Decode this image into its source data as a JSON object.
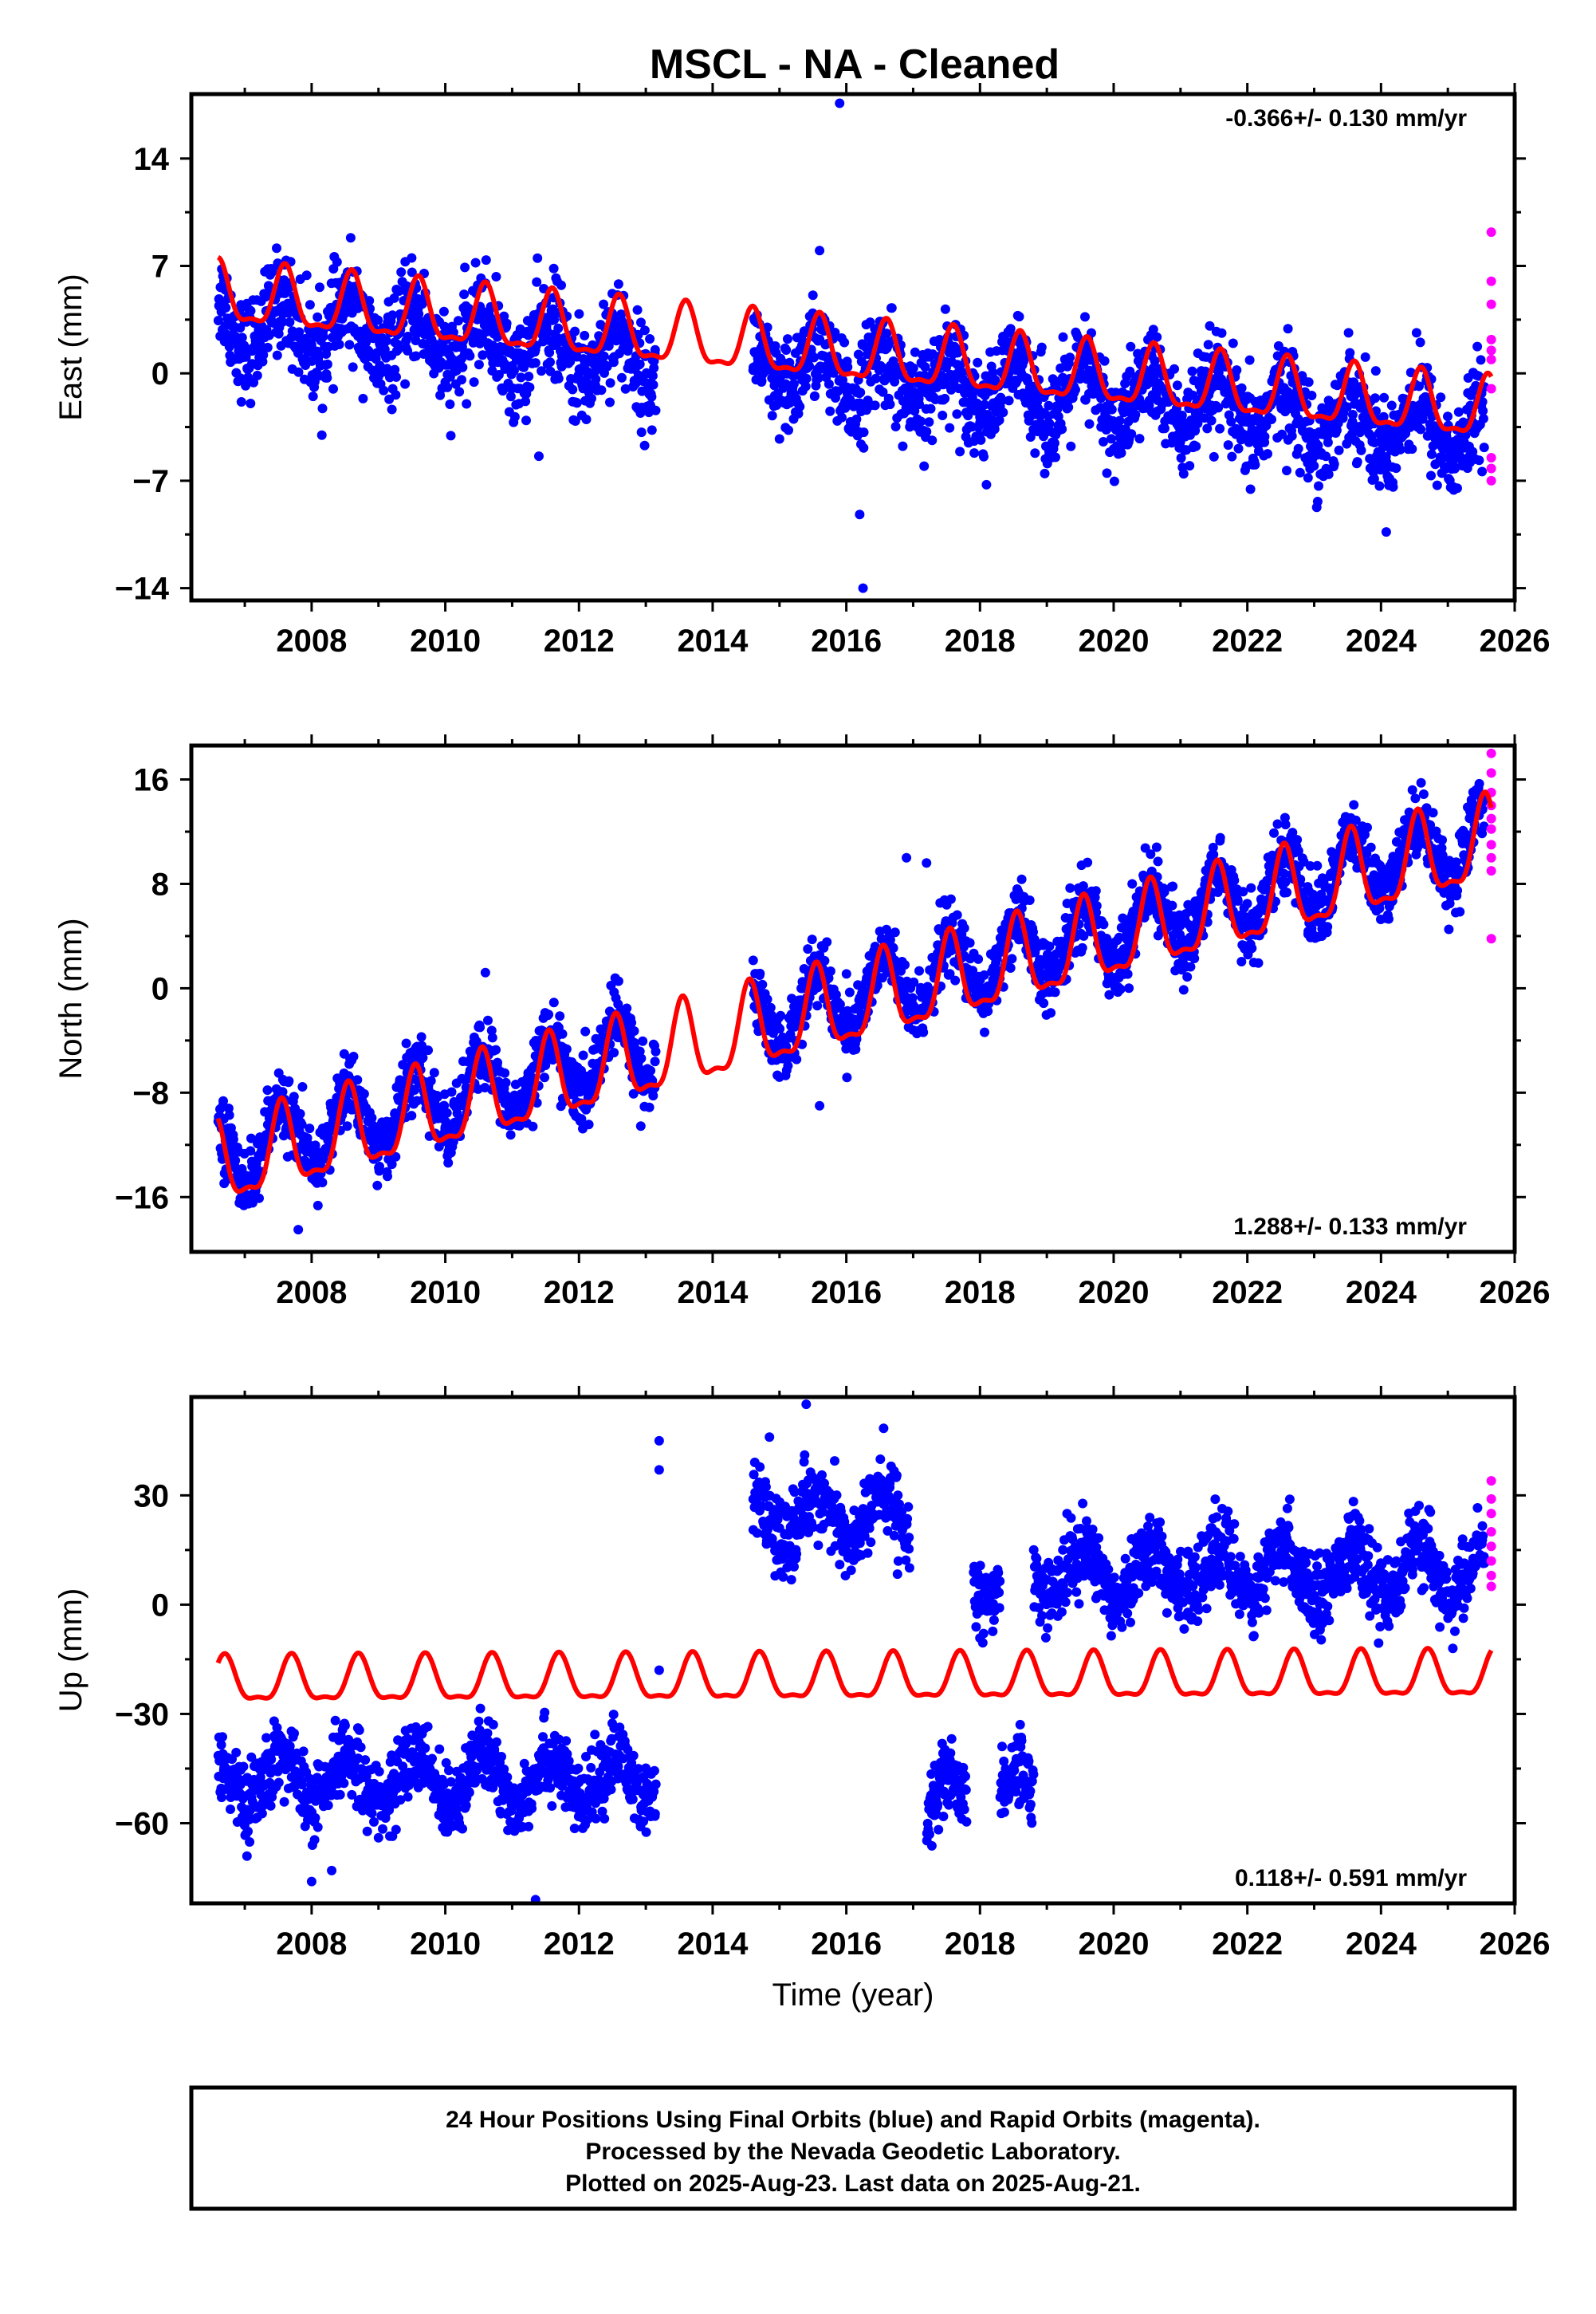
{
  "title": "MSCL  - NA - Cleaned",
  "footer": {
    "lines": [
      "24 Hour Positions Using Final Orbits (blue) and Rapid Orbits (magenta).",
      "Processed by the Nevada Geodetic Laboratory.",
      "Plotted on 2025-Aug-23. Last data on 2025-Aug-21."
    ]
  },
  "colors": {
    "final": "#0000ff",
    "rapid": "#ff00ff",
    "model": "#ff0000"
  },
  "chart_data": [
    {
      "type": "scatter",
      "ylabel": "East (mm)",
      "xlabel": "",
      "xlim": [
        2006.2,
        2026.0
      ],
      "ylim": [
        -14.8,
        18.2
      ],
      "yticks": [
        14,
        7,
        0,
        -7,
        -14
      ],
      "xticks": [
        2008,
        2010,
        2012,
        2014,
        2016,
        2018,
        2020,
        2022,
        2024,
        2026
      ],
      "rate_text": "-0.366+/- 0.130 mm/yr",
      "rate_position": "top-right",
      "series": [
        {
          "name": "Final Orbits",
          "color": "#0000ff",
          "segments": [
            [
              2006.6,
              2013.15
            ],
            [
              2014.6,
              2025.55
            ]
          ],
          "trend": [
            3.5,
            2025.5,
            -3.8
          ],
          "annual_amplitude": 1.7,
          "noise": 1.6,
          "outliers": [
            [
              2015.9,
              17.6
            ],
            [
              2016.25,
              -14.0
            ],
            [
              2016.2,
              -9.2
            ],
            [
              2015.6,
              8.0
            ],
            [
              2011.4,
              -5.4
            ]
          ]
        },
        {
          "name": "Rapid Orbits",
          "color": "#ff00ff",
          "points": [
            [
              2025.65,
              9.2
            ],
            [
              2025.65,
              6.0
            ],
            [
              2025.65,
              4.5
            ],
            [
              2025.65,
              2.2
            ],
            [
              2025.65,
              1.5
            ],
            [
              2025.65,
              0.9
            ],
            [
              2025.65,
              -1.0
            ],
            [
              2025.65,
              -5.5
            ],
            [
              2025.65,
              -6.2
            ],
            [
              2025.65,
              -7.0
            ]
          ]
        },
        {
          "name": "Model",
          "color": "#ff0000",
          "range": [
            2006.6,
            2025.65
          ],
          "trend": [
            5.0,
            2025.5,
            -2.5
          ],
          "annual_amplitude": 1.9,
          "phase": 0.6
        }
      ]
    },
    {
      "type": "scatter",
      "ylabel": "North (mm)",
      "xlabel": "",
      "xlim": [
        2006.2,
        2026.0
      ],
      "ylim": [
        -20.2,
        18.6
      ],
      "yticks": [
        16,
        8,
        0,
        -8,
        -16
      ],
      "xticks": [
        2008,
        2010,
        2012,
        2014,
        2016,
        2018,
        2020,
        2022,
        2024,
        2026
      ],
      "rate_text": "1.288+/- 0.133 mm/yr",
      "rate_position": "bottom-right",
      "series": [
        {
          "name": "Final Orbits",
          "color": "#0000ff",
          "segments": [
            [
              2006.6,
              2013.15
            ],
            [
              2014.6,
              2025.55
            ]
          ],
          "trend": [
            -12.8,
            2025.5,
            11.5
          ],
          "annual_amplitude": 2.6,
          "noise": 1.3,
          "outliers": [
            [
              2015.6,
              -9.0
            ],
            [
              2016.9,
              10.0
            ],
            [
              2017.2,
              9.6
            ],
            [
              2007.8,
              -18.5
            ],
            [
              2010.6,
              1.2
            ]
          ]
        },
        {
          "name": "Rapid Orbits",
          "color": "#ff00ff",
          "points": [
            [
              2025.65,
              18.0
            ],
            [
              2025.65,
              16.5
            ],
            [
              2025.65,
              15.0
            ],
            [
              2025.65,
              14.0
            ],
            [
              2025.65,
              13.0
            ],
            [
              2025.65,
              12.2
            ],
            [
              2025.65,
              11.0
            ],
            [
              2025.65,
              10.0
            ],
            [
              2025.65,
              9.0
            ],
            [
              2025.65,
              3.8
            ]
          ]
        },
        {
          "name": "Model",
          "color": "#ff0000",
          "range": [
            2006.6,
            2025.65
          ],
          "trend": [
            -13.8,
            2025.5,
            10.8
          ],
          "annual_amplitude": 3.1,
          "phase": 0.55
        }
      ]
    },
    {
      "type": "scatter",
      "ylabel": "Up (mm)",
      "xlabel": "Time (year)",
      "xlim": [
        2006.2,
        2026.0
      ],
      "ylim": [
        -82,
        57
      ],
      "yticks": [
        30,
        0,
        -30,
        -60
      ],
      "xticks": [
        2008,
        2010,
        2012,
        2014,
        2016,
        2018,
        2020,
        2022,
        2024,
        2026
      ],
      "rate_text": "0.118+/- 0.591 mm/yr",
      "rate_position": "bottom-right",
      "series": [
        {
          "name": "Final Orbits",
          "color": "#0000ff",
          "segments": [
            [
              2006.6,
              2013.15,
              -48
            ],
            [
              2014.6,
              2016.95,
              24
            ],
            [
              2017.2,
              2017.8,
              -55
            ],
            [
              2017.9,
              2018.3,
              7
            ],
            [
              2018.3,
              2018.8,
              -52
            ],
            [
              2018.8,
              2025.55,
              9
            ]
          ],
          "annual_amplitude": 6.5,
          "noise": 5.0,
          "outliers": [
            [
              2013.2,
              45.0
            ],
            [
              2013.2,
              37.0
            ],
            [
              2015.4,
              55.0
            ],
            [
              2014.85,
              46.0
            ],
            [
              2011.35,
              -81.0
            ],
            [
              2008.0,
              -76.0
            ],
            [
              2008.3,
              -73.0
            ],
            [
              2013.2,
              -18.0
            ]
          ]
        },
        {
          "name": "Rapid Orbits",
          "color": "#ff00ff",
          "points": [
            [
              2025.65,
              34.0
            ],
            [
              2025.65,
              29.0
            ],
            [
              2025.65,
              25.0
            ],
            [
              2025.65,
              20.0
            ],
            [
              2025.65,
              16.0
            ],
            [
              2025.65,
              12.0
            ],
            [
              2025.65,
              8.0
            ],
            [
              2025.65,
              5.0
            ]
          ]
        },
        {
          "name": "Model",
          "color": "#ff0000",
          "range": [
            2006.6,
            2025.65
          ],
          "trend": [
            -21.5,
            2025.5,
            -20.0
          ],
          "annual_amplitude": 6.0,
          "phase": 0.7
        }
      ]
    }
  ]
}
